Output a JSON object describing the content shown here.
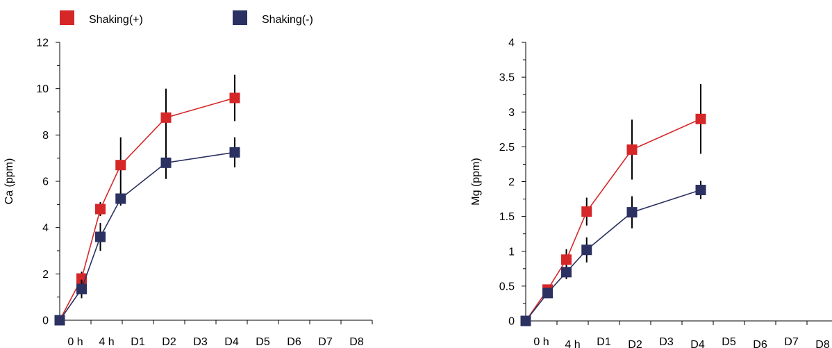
{
  "legend": [
    {
      "label": "Shaking(+)",
      "color": "#d62728"
    },
    {
      "label": "Shaking(-)",
      "color": "#2b3160"
    }
  ],
  "chart_data": [
    {
      "type": "line",
      "title": "",
      "xlabel": "",
      "ylabel": "Ca (ppm)",
      "ylim": [
        0,
        12
      ],
      "yticks": [
        "0",
        "2",
        "4",
        "6",
        "8",
        "10",
        "12"
      ],
      "categories": [
        "0 h",
        "4 h",
        "D1",
        "D2",
        "D3",
        "D4",
        "D5",
        "D6",
        "D7",
        "D8"
      ],
      "legend_position": "top",
      "series": [
        {
          "name": "Shaking(+)",
          "color": "#d62728",
          "x": [
            0,
            0.7,
            1.3,
            1.95,
            3.4,
            5.6
          ],
          "values": [
            0,
            1.8,
            4.8,
            6.7,
            8.75,
            9.6
          ],
          "err": [
            0,
            0.3,
            0.3,
            1.2,
            1.25,
            1.0
          ]
        },
        {
          "name": "Shaking(-)",
          "color": "#2b3160",
          "x": [
            0,
            0.7,
            1.3,
            1.95,
            3.4,
            5.6
          ],
          "values": [
            0,
            1.35,
            3.6,
            5.25,
            6.8,
            7.25
          ],
          "err": [
            0,
            0.4,
            0.6,
            0.3,
            0.7,
            0.65
          ]
        }
      ]
    },
    {
      "type": "line",
      "title": "",
      "xlabel": "",
      "ylabel": "Mg (ppm)",
      "ylim": [
        0,
        4
      ],
      "yticks": [
        "0",
        "0.5",
        "1",
        "1.5",
        "2",
        "2.5",
        "3",
        "3.5",
        "4"
      ],
      "categories": [
        "0 h",
        "4 h",
        "D1",
        "D2",
        "D3",
        "D4",
        "D5",
        "D6",
        "D7",
        "D8"
      ],
      "series": [
        {
          "name": "Shaking(+)",
          "color": "#d62728",
          "x": [
            0,
            0.7,
            1.3,
            1.95,
            3.4,
            5.6
          ],
          "values": [
            0,
            0.45,
            0.88,
            1.57,
            2.46,
            2.9
          ],
          "err": [
            0,
            0.05,
            0.15,
            0.2,
            0.43,
            0.5
          ]
        },
        {
          "name": "Shaking(-)",
          "color": "#2b3160",
          "x": [
            0,
            0.7,
            1.3,
            1.95,
            3.4,
            5.6
          ],
          "values": [
            0,
            0.4,
            0.7,
            1.02,
            1.56,
            1.88
          ],
          "err": [
            0,
            0.05,
            0.1,
            0.18,
            0.23,
            0.13
          ]
        }
      ]
    }
  ]
}
